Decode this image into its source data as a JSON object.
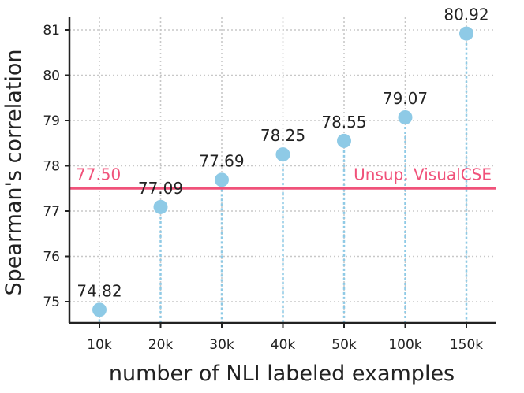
{
  "chart_data": {
    "type": "scatter",
    "categories": [
      "10k",
      "20k",
      "30k",
      "40k",
      "50k",
      "100k",
      "150k"
    ],
    "values": [
      74.82,
      77.09,
      77.69,
      78.25,
      78.55,
      79.07,
      80.92
    ],
    "data_labels": [
      "74.82",
      "77.09",
      "77.69",
      "78.25",
      "78.55",
      "79.07",
      "80.92"
    ],
    "xlabel": "number of NLI labeled examples",
    "ylabel": "Spearman's correlation",
    "ylim": [
      74.5,
      81.25
    ],
    "yticks": [
      "75",
      "76",
      "77",
      "78",
      "79",
      "80",
      "81"
    ],
    "grid": true,
    "reference_line": {
      "value": 77.5,
      "value_label": "77.50",
      "label": "Unsup. VisualCSE",
      "color": "#f0527a"
    },
    "point_color": "#8ecae6",
    "drop_line_color": "#8ecae6"
  }
}
